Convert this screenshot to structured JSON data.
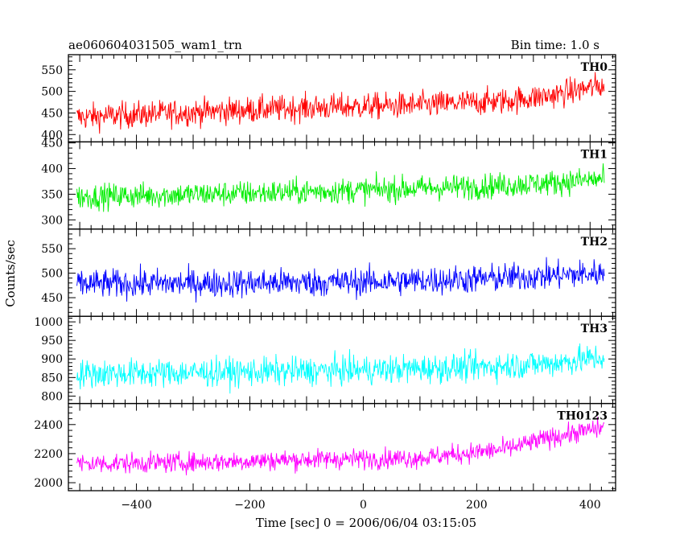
{
  "chart_data": {
    "type": "line",
    "title": "ae060604031505_wam1_trn",
    "subtitle": "Bin time: 1.0 s",
    "xlabel": "Time [sec] 0 = 2006/06/04 03:15:05",
    "ylabel": "Counts/sec",
    "xlim": [
      -520,
      445
    ],
    "x_ticks": [
      -400,
      -200,
      0,
      200,
      400
    ],
    "grid": false,
    "x_range_data": [
      -505,
      425
    ],
    "panels": [
      {
        "name": "TH0",
        "color": "#ff0000",
        "ylim": [
          383,
          585
        ],
        "y_ticks": [
          400,
          450,
          500,
          550
        ],
        "trend": {
          "x": [
            -505,
            -300,
            -100,
            100,
            250,
            330,
            425
          ],
          "y": [
            440,
            452,
            462,
            468,
            478,
            490,
            515
          ]
        },
        "noise_amplitude": 40
      },
      {
        "name": "TH1",
        "color": "#00ee00",
        "ylim": [
          282,
          452
        ],
        "y_ticks": [
          300,
          350,
          400,
          450
        ],
        "trend": {
          "x": [
            -505,
            -200,
            0,
            200,
            330,
            425
          ],
          "y": [
            345,
            352,
            358,
            365,
            372,
            380
          ]
        },
        "noise_amplitude": 32
      },
      {
        "name": "TH2",
        "color": "#0000ff",
        "ylim": [
          412,
          590
        ],
        "y_ticks": [
          450,
          500,
          550
        ],
        "trend": {
          "x": [
            -505,
            -200,
            0,
            200,
            330,
            425
          ],
          "y": [
            478,
            480,
            482,
            488,
            495,
            500
          ]
        },
        "noise_amplitude": 38
      },
      {
        "name": "TH3",
        "color": "#00ffff",
        "ylim": [
          780,
          1015
        ],
        "y_ticks": [
          800,
          850,
          900,
          950,
          1000
        ],
        "trend": {
          "x": [
            -505,
            -200,
            0,
            200,
            330,
            425
          ],
          "y": [
            860,
            865,
            870,
            878,
            888,
            905
          ]
        },
        "noise_amplitude": 50
      },
      {
        "name": "TH0123",
        "color": "#ff00ff",
        "ylim": [
          1945,
          2545
        ],
        "y_ticks": [
          2000,
          2200,
          2400
        ],
        "trend": {
          "x": [
            -505,
            -300,
            -100,
            100,
            250,
            330,
            425
          ],
          "y": [
            2130,
            2140,
            2160,
            2170,
            2230,
            2310,
            2380
          ]
        },
        "noise_amplitude": 90
      }
    ]
  }
}
